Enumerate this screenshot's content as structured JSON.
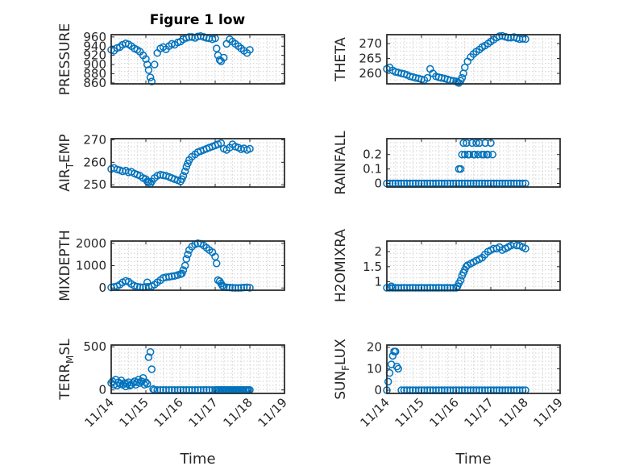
{
  "figure": {
    "title": "Figure 1 low"
  },
  "chart_data": [
    {
      "id": "pressure",
      "type": "scatter",
      "title": "Figure 1 low",
      "ylabel": "PRESSURE",
      "xlabel": "",
      "ylim": [
        858,
        965
      ],
      "yticks": [
        860,
        880,
        900,
        920,
        940,
        960
      ],
      "xlim": [
        0,
        5
      ],
      "xticks": [
        "11/14",
        "11/15",
        "11/16",
        "11/17",
        "11/18",
        "11/19"
      ],
      "grid": true,
      "x": [
        0.0,
        0.08,
        0.17,
        0.25,
        0.33,
        0.42,
        0.5,
        0.58,
        0.67,
        0.75,
        0.83,
        0.92,
        1.0,
        1.04,
        1.08,
        1.13,
        1.17,
        1.25,
        1.33,
        1.42,
        1.5,
        1.58,
        1.67,
        1.75,
        1.83,
        1.92,
        2.0,
        2.08,
        2.17,
        2.25,
        2.33,
        2.42,
        2.5,
        2.58,
        2.67,
        2.75,
        2.83,
        2.92,
        3.0,
        3.04,
        3.08,
        3.13,
        3.17,
        3.25,
        3.33,
        3.42,
        3.5,
        3.58,
        3.67,
        3.75,
        3.83,
        3.92,
        4.0
      ],
      "y": [
        932,
        930,
        936,
        938,
        943,
        946,
        944,
        940,
        935,
        932,
        928,
        920,
        912,
        900,
        888,
        872,
        863,
        900,
        925,
        935,
        938,
        933,
        940,
        945,
        943,
        948,
        950,
        955,
        958,
        960,
        960,
        958,
        961,
        962,
        960,
        958,
        957,
        955,
        957,
        935,
        920,
        910,
        907,
        915,
        945,
        955,
        950,
        945,
        940,
        935,
        930,
        925,
        932
      ]
    },
    {
      "id": "theta",
      "type": "scatter",
      "ylabel": "THETA",
      "xlabel": "",
      "ylim": [
        256.5,
        273
      ],
      "yticks": [
        260,
        265,
        270
      ],
      "xlim": [
        0,
        5
      ],
      "xticks": [
        "11/14",
        "11/15",
        "11/16",
        "11/17",
        "11/18",
        "11/19"
      ],
      "grid": true,
      "x": [
        0.0,
        0.08,
        0.17,
        0.25,
        0.33,
        0.42,
        0.5,
        0.58,
        0.67,
        0.75,
        0.83,
        0.92,
        1.0,
        1.08,
        1.17,
        1.25,
        1.33,
        1.42,
        1.5,
        1.58,
        1.67,
        1.75,
        1.83,
        1.92,
        2.0,
        2.04,
        2.08,
        2.13,
        2.17,
        2.21,
        2.25,
        2.33,
        2.42,
        2.5,
        2.58,
        2.67,
        2.75,
        2.83,
        2.92,
        3.0,
        3.08,
        3.17,
        3.25,
        3.33,
        3.42,
        3.5,
        3.58,
        3.67,
        3.75,
        3.83,
        3.92,
        4.0
      ],
      "y": [
        261.5,
        262.0,
        261.0,
        260.5,
        260.3,
        260.0,
        259.8,
        259.5,
        259.0,
        258.8,
        258.5,
        258.3,
        258.0,
        257.8,
        258.5,
        261.5,
        260.0,
        259.0,
        258.7,
        258.5,
        258.3,
        258.0,
        257.7,
        257.5,
        257.3,
        257.0,
        256.8,
        257.5,
        258.5,
        260.0,
        262.0,
        264.0,
        265.5,
        266.5,
        267.3,
        268.0,
        268.8,
        269.3,
        270.0,
        270.7,
        271.3,
        272.0,
        272.5,
        272.6,
        272.3,
        272.0,
        272.0,
        272.2,
        271.8,
        271.5,
        271.6,
        271.5
      ]
    },
    {
      "id": "air_temp",
      "type": "scatter",
      "ylabel": "AIR_TEMP",
      "ylabel_main": "AIR",
      "ylabel_sub": "T",
      "ylabel_rest": "EMP",
      "xlabel": "",
      "ylim": [
        249,
        270.5
      ],
      "yticks": [
        250,
        260,
        270
      ],
      "xlim": [
        0,
        5
      ],
      "xticks": [
        "11/14",
        "11/15",
        "11/16",
        "11/17",
        "11/18",
        "11/19"
      ],
      "grid": true,
      "x": [
        0.0,
        0.08,
        0.17,
        0.25,
        0.33,
        0.42,
        0.5,
        0.58,
        0.67,
        0.75,
        0.83,
        0.92,
        1.0,
        1.04,
        1.08,
        1.13,
        1.17,
        1.25,
        1.33,
        1.42,
        1.5,
        1.58,
        1.67,
        1.75,
        1.83,
        1.92,
        2.0,
        2.04,
        2.08,
        2.13,
        2.17,
        2.21,
        2.25,
        2.33,
        2.42,
        2.5,
        2.58,
        2.67,
        2.75,
        2.83,
        2.92,
        3.0,
        3.08,
        3.17,
        3.25,
        3.33,
        3.42,
        3.5,
        3.58,
        3.67,
        3.75,
        3.83,
        3.92,
        4.0
      ],
      "y": [
        257.0,
        257.5,
        256.8,
        256.5,
        256.0,
        256.3,
        255.5,
        255.8,
        255.0,
        254.5,
        254.0,
        253.0,
        252.5,
        251.5,
        251.0,
        250.5,
        251.5,
        253.0,
        254.0,
        254.5,
        254.2,
        254.0,
        253.5,
        253.0,
        252.5,
        252.0,
        251.5,
        252.5,
        254.0,
        256.0,
        258.0,
        259.5,
        261.0,
        262.5,
        263.5,
        264.5,
        265.0,
        265.5,
        266.0,
        266.5,
        267.0,
        267.5,
        268.0,
        268.5,
        266.0,
        265.5,
        266.5,
        268.0,
        267.0,
        266.5,
        265.8,
        266.2,
        265.5,
        266.0
      ]
    },
    {
      "id": "rainfall",
      "type": "scatter",
      "ylabel": "RAINFALL",
      "xlabel": "",
      "ylim": [
        -0.025,
        0.31
      ],
      "yticks": [
        0,
        0.1,
        0.2
      ],
      "ytick_labels": [
        "0",
        "0.1",
        "0.2"
      ],
      "xlim": [
        0,
        5
      ],
      "xticks": [
        "11/14",
        "11/15",
        "11/16",
        "11/17",
        "11/18",
        "11/19"
      ],
      "grid": true,
      "x": [
        0.0,
        0.08,
        0.17,
        0.25,
        0.33,
        0.42,
        0.5,
        0.58,
        0.67,
        0.75,
        0.83,
        0.92,
        1.0,
        1.08,
        1.17,
        1.25,
        1.33,
        1.42,
        1.5,
        1.58,
        1.67,
        1.75,
        1.83,
        1.92,
        2.0,
        2.08,
        2.17,
        2.25,
        2.33,
        2.42,
        2.5,
        2.58,
        2.67,
        2.75,
        2.83,
        2.92,
        3.0,
        3.08,
        3.17,
        3.25,
        3.33,
        3.42,
        3.5,
        3.58,
        3.67,
        3.75,
        3.83,
        3.92,
        4.0,
        2.08,
        2.13,
        2.17,
        2.21,
        2.25,
        2.3,
        2.34,
        2.38,
        2.46,
        2.5,
        2.54,
        2.58,
        2.63,
        2.67,
        2.75,
        2.8,
        2.84,
        2.88,
        2.92,
        3.0,
        3.05
      ],
      "y": [
        0,
        0,
        0,
        0,
        0,
        0,
        0,
        0,
        0,
        0,
        0,
        0,
        0,
        0,
        0,
        0,
        0,
        0,
        0,
        0,
        0,
        0,
        0,
        0,
        0,
        0,
        0,
        0,
        0,
        0,
        0,
        0,
        0,
        0,
        0,
        0,
        0,
        0,
        0,
        0,
        0,
        0,
        0,
        0,
        0,
        0,
        0,
        0,
        0,
        0.1,
        0.1,
        0.2,
        0.28,
        0.2,
        0.28,
        0.2,
        0.2,
        0.28,
        0.2,
        0.2,
        0.28,
        0.2,
        0.28,
        0.2,
        0.2,
        0.28,
        0.2,
        0.2,
        0.28,
        0.2
      ]
    },
    {
      "id": "mixdepth",
      "type": "scatter",
      "ylabel": "MIXDEPTH",
      "xlabel": "",
      "ylim": [
        -100,
        2100
      ],
      "yticks": [
        0,
        1000,
        2000
      ],
      "xlim": [
        0,
        5
      ],
      "xticks": [
        "11/14",
        "11/15",
        "11/16",
        "11/17",
        "11/18",
        "11/19"
      ],
      "grid": true,
      "x": [
        0.0,
        0.08,
        0.17,
        0.25,
        0.33,
        0.42,
        0.5,
        0.58,
        0.67,
        0.75,
        0.83,
        0.92,
        1.0,
        1.04,
        1.08,
        1.17,
        1.25,
        1.33,
        1.42,
        1.5,
        1.58,
        1.67,
        1.75,
        1.83,
        1.92,
        2.0,
        2.04,
        2.08,
        2.13,
        2.17,
        2.21,
        2.25,
        2.33,
        2.42,
        2.5,
        2.58,
        2.67,
        2.75,
        2.83,
        2.92,
        3.0,
        3.04,
        3.08,
        3.13,
        3.17,
        3.21,
        3.25,
        3.33,
        3.42,
        3.5,
        3.58,
        3.67,
        3.75,
        3.83,
        3.92,
        4.0
      ],
      "y": [
        20,
        50,
        80,
        150,
        250,
        320,
        280,
        180,
        100,
        60,
        40,
        30,
        50,
        250,
        60,
        80,
        150,
        250,
        350,
        450,
        480,
        500,
        520,
        540,
        580,
        620,
        650,
        800,
        1000,
        1300,
        1500,
        1700,
        1850,
        1950,
        2000,
        1980,
        1900,
        1800,
        1700,
        1600,
        1400,
        1100,
        350,
        300,
        200,
        100,
        50,
        30,
        20,
        10,
        5,
        5,
        10,
        20,
        30,
        10
      ]
    },
    {
      "id": "h2omixra",
      "type": "scatter",
      "ylabel": "H2OMIXRA",
      "xlabel": "",
      "ylim": [
        0.72,
        2.35
      ],
      "yticks": [
        1,
        1.5,
        2
      ],
      "ytick_labels": [
        "1",
        "1.5",
        "2"
      ],
      "xlim": [
        0,
        5
      ],
      "xticks": [
        "11/14",
        "11/15",
        "11/16",
        "11/17",
        "11/18",
        "11/19"
      ],
      "grid": true,
      "x": [
        0.0,
        0.08,
        0.13,
        0.17,
        0.25,
        0.33,
        0.42,
        0.5,
        0.58,
        0.67,
        0.75,
        0.83,
        0.92,
        1.0,
        1.08,
        1.17,
        1.25,
        1.33,
        1.42,
        1.5,
        1.58,
        1.67,
        1.75,
        1.83,
        1.92,
        2.0,
        2.04,
        2.08,
        2.13,
        2.17,
        2.21,
        2.25,
        2.29,
        2.33,
        2.42,
        2.5,
        2.58,
        2.67,
        2.75,
        2.83,
        2.92,
        3.0,
        3.08,
        3.17,
        3.25,
        3.33,
        3.42,
        3.5,
        3.58,
        3.67,
        3.75,
        3.83,
        3.92,
        4.0
      ],
      "y": [
        0.8,
        0.8,
        0.85,
        0.8,
        0.8,
        0.8,
        0.8,
        0.8,
        0.8,
        0.8,
        0.8,
        0.8,
        0.8,
        0.8,
        0.8,
        0.8,
        0.8,
        0.8,
        0.8,
        0.8,
        0.8,
        0.8,
        0.8,
        0.8,
        0.8,
        0.8,
        0.85,
        0.95,
        1.05,
        1.2,
        1.3,
        1.4,
        1.5,
        1.55,
        1.6,
        1.65,
        1.7,
        1.75,
        1.8,
        1.9,
        2.0,
        2.05,
        2.1,
        2.1,
        2.15,
        2.05,
        2.1,
        2.15,
        2.2,
        2.25,
        2.2,
        2.2,
        2.15,
        2.1
      ]
    },
    {
      "id": "terr_msl",
      "type": "scatter",
      "ylabel": "TERR_MSL",
      "ylabel_main": "TERR",
      "ylabel_sub": "M",
      "ylabel_rest": "SL",
      "xlabel": "Time",
      "ylim": [
        -40,
        520
      ],
      "yticks": [
        0,
        500
      ],
      "xlim": [
        0,
        5
      ],
      "xticks": [
        "11/14",
        "11/15",
        "11/16",
        "11/17",
        "11/18",
        "11/19"
      ],
      "grid": true,
      "x": [
        0.0,
        0.04,
        0.08,
        0.13,
        0.17,
        0.21,
        0.25,
        0.29,
        0.33,
        0.38,
        0.42,
        0.46,
        0.5,
        0.54,
        0.58,
        0.63,
        0.67,
        0.71,
        0.75,
        0.79,
        0.83,
        0.88,
        0.92,
        0.96,
        1.0,
        1.04,
        1.08,
        1.13,
        1.17,
        1.21,
        1.25,
        1.33,
        1.42,
        1.5,
        1.58,
        1.67,
        1.75,
        1.83,
        1.92,
        2.0,
        2.08,
        2.17,
        2.25,
        2.33,
        2.42,
        2.5,
        2.58,
        2.67,
        2.75,
        2.83,
        2.92,
        3.0,
        3.04,
        3.08,
        3.13,
        3.17,
        3.21,
        3.25,
        3.29,
        3.33,
        3.38,
        3.42,
        3.46,
        3.5,
        3.54,
        3.58,
        3.63,
        3.67,
        3.71,
        3.75,
        3.79,
        3.83,
        3.88,
        3.92,
        3.96,
        4.0
      ],
      "y": [
        80,
        100,
        60,
        120,
        50,
        90,
        70,
        110,
        60,
        80,
        40,
        70,
        90,
        50,
        60,
        80,
        100,
        60,
        90,
        120,
        80,
        100,
        140,
        60,
        90,
        70,
        380,
        440,
        240,
        10,
        0,
        0,
        0,
        0,
        0,
        0,
        0,
        0,
        0,
        0,
        0,
        0,
        0,
        0,
        0,
        0,
        0,
        0,
        0,
        0,
        0,
        0,
        0,
        0,
        0,
        0,
        0,
        0,
        0,
        0,
        0,
        0,
        0,
        0,
        0,
        0,
        0,
        0,
        0,
        0,
        0,
        0,
        0,
        0,
        0,
        0
      ]
    },
    {
      "id": "sun_flux",
      "type": "scatter",
      "ylabel": "SUN_FLUX",
      "ylabel_main": "SUN",
      "ylabel_sub": "F",
      "ylabel_rest": "LUX",
      "xlabel": "Time",
      "ylim": [
        -1.5,
        21
      ],
      "yticks": [
        0,
        10,
        20
      ],
      "xlim": [
        0,
        5
      ],
      "xticks": [
        "11/14",
        "11/15",
        "11/16",
        "11/17",
        "11/18",
        "11/19"
      ],
      "grid": true,
      "x": [
        0.0,
        0.04,
        0.08,
        0.13,
        0.17,
        0.21,
        0.25,
        0.29,
        0.33,
        0.42,
        0.5,
        0.58,
        0.67,
        0.75,
        0.83,
        0.92,
        1.0,
        1.08,
        1.17,
        1.25,
        1.33,
        1.42,
        1.5,
        1.58,
        1.67,
        1.75,
        1.83,
        1.92,
        2.0,
        2.08,
        2.17,
        2.25,
        2.33,
        2.42,
        2.5,
        2.58,
        2.67,
        2.75,
        2.83,
        2.92,
        3.0,
        3.08,
        3.17,
        3.25,
        3.33,
        3.42,
        3.5,
        3.58,
        3.67,
        3.75,
        3.83,
        3.92,
        4.0
      ],
      "y": [
        0,
        4,
        8,
        12,
        16,
        18,
        18,
        11,
        10,
        0,
        0,
        0,
        0,
        0,
        0,
        0,
        0,
        0,
        0,
        0,
        0,
        0,
        0,
        0,
        0,
        0,
        0,
        0,
        0,
        0,
        0,
        0,
        0,
        0,
        0,
        0,
        0,
        0,
        0,
        0,
        0,
        0,
        0,
        0,
        0,
        0,
        0,
        0,
        0,
        0,
        0,
        0,
        0
      ]
    }
  ]
}
